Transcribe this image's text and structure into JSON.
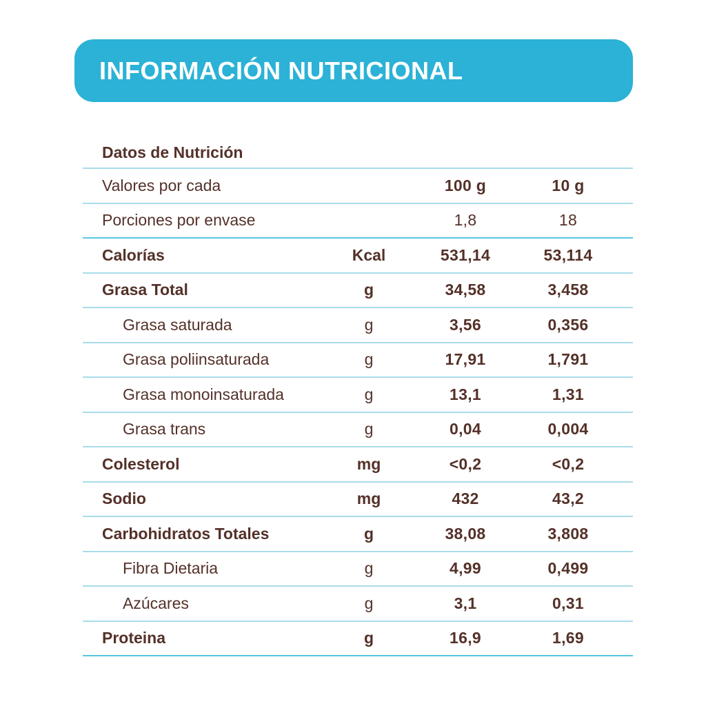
{
  "header": {
    "title": "INFORMACIÓN NUTRICIONAL",
    "bg_color": "#2bb2d6",
    "text_color": "#ffffff"
  },
  "table": {
    "title": "Datos de Nutrición",
    "colors": {
      "text_brown": "#543129",
      "divider_light": "#a9dcea",
      "divider_dark": "#57c6df"
    },
    "rows": [
      {
        "label": "Valores por cada",
        "unit": "",
        "v100": "100 g",
        "v10": "10 g"
      },
      {
        "label": "Porciones por envase",
        "unit": "",
        "v100": "1,8",
        "v10": "18"
      },
      {
        "label": "Calorías",
        "unit": "Kcal",
        "v100": "531,14",
        "v10": "53,114"
      },
      {
        "label": "Grasa Total",
        "unit": "g",
        "v100": "34,58",
        "v10": "3,458"
      },
      {
        "label": "Grasa saturada",
        "unit": "g",
        "v100": "3,56",
        "v10": "0,356"
      },
      {
        "label": "Grasa poliinsaturada",
        "unit": "g",
        "v100": "17,91",
        "v10": "1,791"
      },
      {
        "label": "Grasa monoinsaturada",
        "unit": "g",
        "v100": "13,1",
        "v10": "1,31"
      },
      {
        "label": "Grasa trans",
        "unit": "g",
        "v100": "0,04",
        "v10": "0,004"
      },
      {
        "label": "Colesterol",
        "unit": "mg",
        "v100": "<0,2",
        "v10": "<0,2"
      },
      {
        "label": "Sodio",
        "unit": "mg",
        "v100": "432",
        "v10": "43,2"
      },
      {
        "label": "Carbohidratos Totales",
        "unit": "g",
        "v100": "38,08",
        "v10": "3,808"
      },
      {
        "label": "Fibra Dietaria",
        "unit": "g",
        "v100": "4,99",
        "v10": "0,499"
      },
      {
        "label": "Azúcares",
        "unit": "g",
        "v100": "3,1",
        "v10": "0,31"
      },
      {
        "label": "Proteina",
        "unit": "g",
        "v100": "16,9",
        "v10": "1,69"
      }
    ]
  }
}
